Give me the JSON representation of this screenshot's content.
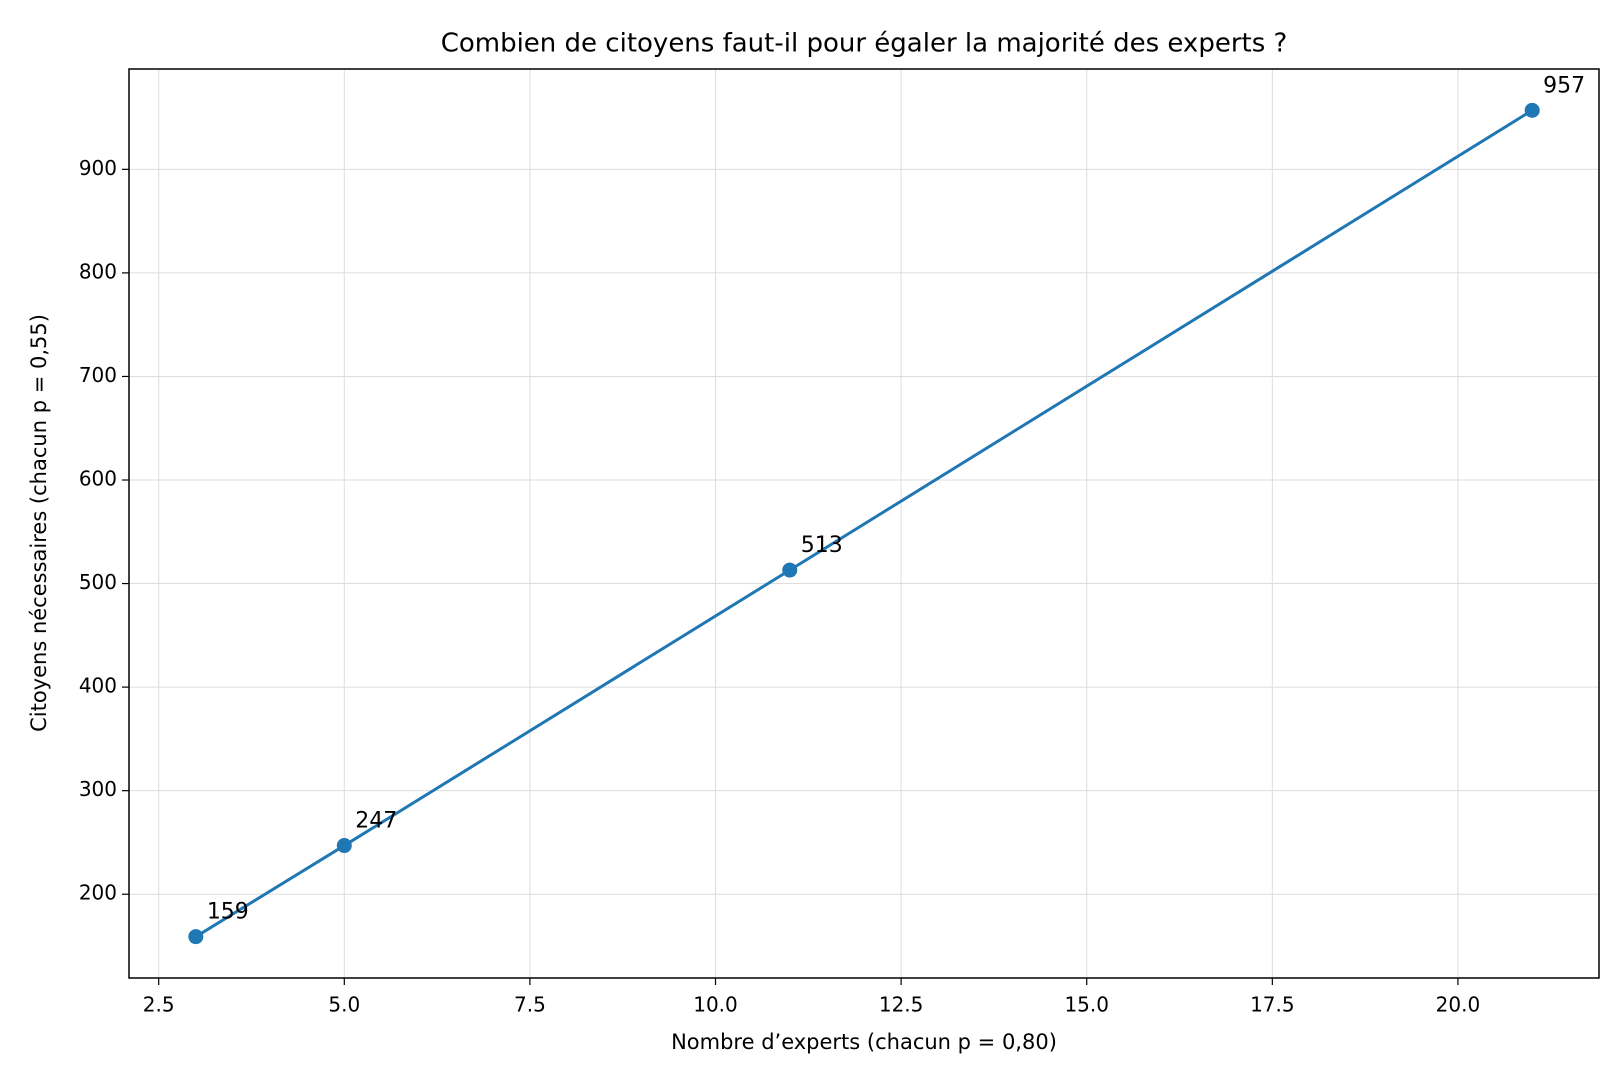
{
  "chart_data": {
    "type": "line",
    "title": "Combien de citoyens faut-il pour égaler la majorité des experts ?",
    "x_label": "Nombre d’experts (chacun p = 0,80)",
    "y_label": "Citoyens nécessaires (chacun p = 0,55)",
    "x": [
      3,
      5,
      11,
      21
    ],
    "series": [
      {
        "color": "#1f77b4",
        "values": [
          159,
          247,
          513,
          957
        ]
      }
    ],
    "xlim": [
      2.1,
      21.9
    ],
    "ylim": [
      119.1,
      996.9
    ],
    "xticks": [
      2.5,
      {
        "value": 5,
        "label": "5.0"
      },
      7.5,
      {
        "value": 10,
        "label": "10.0"
      },
      12.5,
      {
        "value": 15,
        "label": "15.0"
      },
      17.5,
      {
        "value": 20,
        "label": "20.0"
      }
    ],
    "yticks": [
      200,
      300,
      400,
      500,
      600,
      700,
      800,
      900
    ],
    "grid": true
  }
}
